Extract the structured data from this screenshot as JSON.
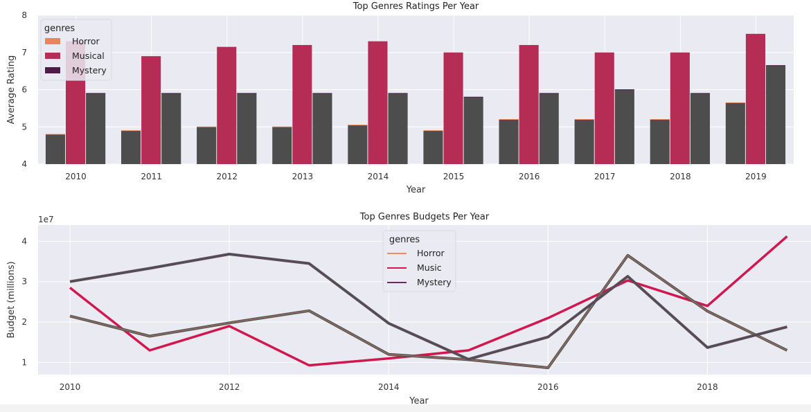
{
  "chart_data": [
    {
      "type": "bar",
      "title": "Top Genres Ratings Per Year",
      "xlabel": "Year",
      "ylabel": "Average Rating",
      "ylim": [
        4,
        8
      ],
      "yticks": [
        4,
        5,
        6,
        7,
        8
      ],
      "grid": true,
      "categories": [
        "2010",
        "2011",
        "2012",
        "2013",
        "2014",
        "2015",
        "2016",
        "2017",
        "2018",
        "2019"
      ],
      "legend": {
        "title": "genres",
        "placement": "top-left"
      },
      "series": [
        {
          "name": "Horror",
          "color": "#e8845e",
          "values": [
            4.8,
            4.9,
            5.0,
            5.0,
            5.05,
            4.9,
            5.2,
            5.2,
            5.2,
            5.65
          ]
        },
        {
          "name": "Musical",
          "color": "#b52d55",
          "values": [
            7.3,
            6.9,
            7.15,
            7.2,
            7.3,
            7.0,
            7.2,
            7.0,
            7.0,
            7.5
          ]
        },
        {
          "name": "Mystery",
          "color": "#4e1c48",
          "values": [
            5.9,
            5.9,
            5.9,
            5.9,
            5.9,
            5.8,
            5.9,
            6.0,
            5.9,
            6.65
          ]
        }
      ],
      "overlay_color": "#4d4d4d"
    },
    {
      "type": "line",
      "title": "Top Genres Budgets Per Year",
      "xlabel": "Year",
      "ylabel": "Budget (millions)",
      "offset_text": "1e7",
      "xlim": [
        2009.6,
        2019.3
      ],
      "ylim": [
        0.7,
        4.4
      ],
      "xticks": [
        2010,
        2012,
        2014,
        2016,
        2018
      ],
      "yticks": [
        1,
        2,
        3,
        4
      ],
      "grid": true,
      "legend": {
        "title": "genres",
        "placement": "top-center"
      },
      "x": [
        2010,
        2011,
        2012,
        2013,
        2014,
        2015,
        2016,
        2017,
        2018,
        2019
      ],
      "series": [
        {
          "name": "Horror",
          "color": "#f08c64",
          "values": [
            2.15,
            1.65,
            1.98,
            2.28,
            1.2,
            1.07,
            0.87,
            3.65,
            2.27,
            1.3
          ]
        },
        {
          "name": "Music",
          "color": "#d0184f",
          "values": [
            2.85,
            1.3,
            1.9,
            0.93,
            1.1,
            1.3,
            2.1,
            3.03,
            2.4,
            4.12
          ]
        },
        {
          "name": "Mystery",
          "color": "#6a2a63",
          "values": [
            3.0,
            3.33,
            3.68,
            3.45,
            1.97,
            1.08,
            1.63,
            3.13,
            1.37,
            1.88
          ]
        }
      ],
      "overlay_color": "#555555"
    }
  ]
}
